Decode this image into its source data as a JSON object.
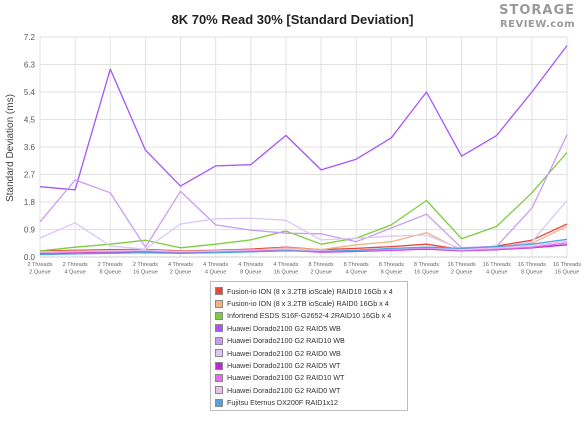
{
  "logo": {
    "line1": "STORAGE",
    "line2": "REVIEW.com"
  },
  "chart_data": {
    "type": "line",
    "title": "8K 70% Read 30% [Standard Deviation]",
    "ylabel": "Standard Deviation (ms)",
    "xlabel": "",
    "ylim": [
      0,
      7.2
    ],
    "yticks": [
      "0.0",
      "0.9",
      "1.8",
      "2.7",
      "3.6",
      "4.5",
      "5.4",
      "6.3",
      "7.2"
    ],
    "grid": true,
    "legend_position": "bottom",
    "categories": [
      [
        "2 Threads",
        "2 Queue"
      ],
      [
        "2 Threads",
        "4 Queue"
      ],
      [
        "2 Threads",
        "8 Queue"
      ],
      [
        "2 Threads",
        "16 Queue"
      ],
      [
        "4 Threads",
        "2 Queue"
      ],
      [
        "4 Threads",
        "4 Queue"
      ],
      [
        "4 Threads",
        "8 Queue"
      ],
      [
        "4 Threads",
        "16 Queue"
      ],
      [
        "8 Threads",
        "2 Queue"
      ],
      [
        "8 Threads",
        "4 Queue"
      ],
      [
        "8 Threads",
        "8 Queue"
      ],
      [
        "8 Threads",
        "16 Queue"
      ],
      [
        "16 Threads",
        "2 Queue"
      ],
      [
        "16 Threads",
        "4 Queue"
      ],
      [
        "16 Threads",
        "8 Queue"
      ],
      [
        "16 Threads",
        "16 Queue"
      ]
    ],
    "series": [
      {
        "name": "Fusion-io ION (8 x 3.2TB ioScale) RAID10 16Gb x 4",
        "color": "#e8453c",
        "values": [
          0.2,
          0.22,
          0.24,
          0.25,
          0.2,
          0.22,
          0.26,
          0.32,
          0.24,
          0.28,
          0.34,
          0.42,
          0.24,
          0.36,
          0.55,
          1.08
        ]
      },
      {
        "name": "Fusion-io ION (8 x 3.2TB ioScale) RAID0 16Gb x 4",
        "color": "#f4b183",
        "values": [
          0.17,
          0.19,
          0.21,
          0.22,
          0.18,
          0.2,
          0.22,
          0.3,
          0.24,
          0.4,
          0.5,
          0.8,
          0.22,
          0.3,
          0.45,
          1.0
        ]
      },
      {
        "name": "Infortrend ESDS S16F-G2652-4 2RAID10 16Gb x 4",
        "color": "#7dcc3e",
        "values": [
          0.2,
          0.32,
          0.42,
          0.55,
          0.3,
          0.42,
          0.56,
          0.85,
          0.42,
          0.62,
          1.05,
          1.85,
          0.6,
          1.0,
          2.1,
          3.42
        ]
      },
      {
        "name": "Huawei Dorado2100 G2 RAID5 WB",
        "color": "#a855f7",
        "values": [
          2.3,
          2.2,
          6.15,
          3.5,
          2.32,
          2.98,
          3.02,
          3.98,
          2.85,
          3.2,
          3.9,
          5.4,
          3.3,
          3.98,
          5.4,
          6.92
        ]
      },
      {
        "name": "Huawei Dorado2100 G2 RAID10 WB",
        "color": "#c89cf0",
        "values": [
          1.15,
          2.52,
          2.1,
          0.32,
          2.15,
          1.05,
          0.88,
          0.78,
          0.76,
          0.5,
          0.95,
          1.4,
          0.3,
          0.35,
          1.6,
          4.0
        ]
      },
      {
        "name": "Huawei Dorado2100 G2 RAID0 WB",
        "color": "#dcc6f5",
        "values": [
          0.62,
          1.12,
          0.36,
          0.26,
          1.08,
          1.25,
          1.27,
          1.2,
          0.56,
          0.62,
          0.68,
          0.72,
          0.26,
          0.3,
          0.5,
          1.85
        ]
      },
      {
        "name": "Huawei Dorado2100 G2 RAID5 WT",
        "color": "#c026d3",
        "values": [
          0.12,
          0.14,
          0.16,
          0.18,
          0.14,
          0.16,
          0.18,
          0.22,
          0.16,
          0.18,
          0.22,
          0.26,
          0.2,
          0.24,
          0.3,
          0.4
        ]
      },
      {
        "name": "Huawei Dorado2100 G2 RAID10 WT",
        "color": "#df72e6",
        "values": [
          0.14,
          0.16,
          0.18,
          0.2,
          0.16,
          0.18,
          0.21,
          0.24,
          0.18,
          0.2,
          0.24,
          0.28,
          0.22,
          0.26,
          0.32,
          0.46
        ]
      },
      {
        "name": "Huawei Dorado2100 G2 RAID0 WT",
        "color": "#edbdf0",
        "values": [
          0.16,
          0.18,
          0.2,
          0.22,
          0.18,
          0.2,
          0.23,
          0.27,
          0.2,
          0.23,
          0.27,
          0.31,
          0.24,
          0.29,
          0.36,
          0.52
        ]
      },
      {
        "name": "Fujitsu Eternus DX200F RAID1x12",
        "color": "#4fa3e3",
        "values": [
          0.08,
          0.1,
          0.12,
          0.14,
          0.12,
          0.14,
          0.17,
          0.2,
          0.18,
          0.22,
          0.28,
          0.32,
          0.28,
          0.34,
          0.42,
          0.58
        ]
      }
    ]
  }
}
